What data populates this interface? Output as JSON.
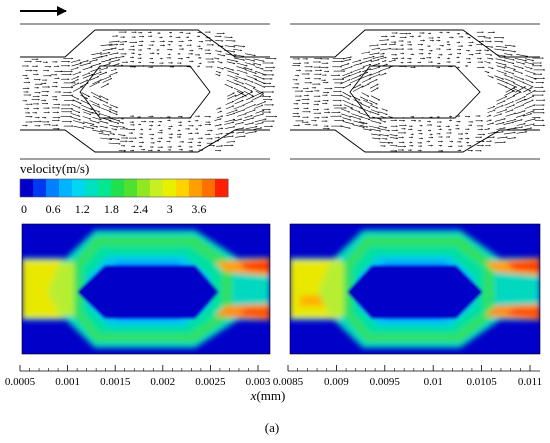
{
  "figure": {
    "direction_arrow": "arrow-right",
    "colorbar": {
      "title": "velocity(m/s)",
      "tick_labels": [
        "0",
        "0.6",
        "1.2",
        "1.8",
        "2.4",
        "3",
        "3.6"
      ],
      "tick_values": [
        0,
        0.6,
        1.2,
        1.8,
        2.4,
        3,
        3.6
      ],
      "range": [
        0,
        4.2
      ],
      "color_stops": [
        "#0000c8",
        "#0037f0",
        "#0080ff",
        "#00b4ff",
        "#00d6f0",
        "#00e0c0",
        "#00e890",
        "#20e050",
        "#50e030",
        "#90e820",
        "#c8f020",
        "#e8f000",
        "#ffd200",
        "#ffa000",
        "#ff7000",
        "#ff2000"
      ]
    },
    "axis": {
      "xlabel_italic": "x",
      "xlabel_unit": "(mm)",
      "left_ticks": [
        "0.0005",
        "0.001",
        "0.0015",
        "0.002",
        "0.0025",
        "0.003"
      ],
      "right_ticks": [
        "0.0085",
        "0.009",
        "0.0095",
        "0.01",
        "0.0105",
        "0.011"
      ]
    },
    "caption": "(a)"
  }
}
